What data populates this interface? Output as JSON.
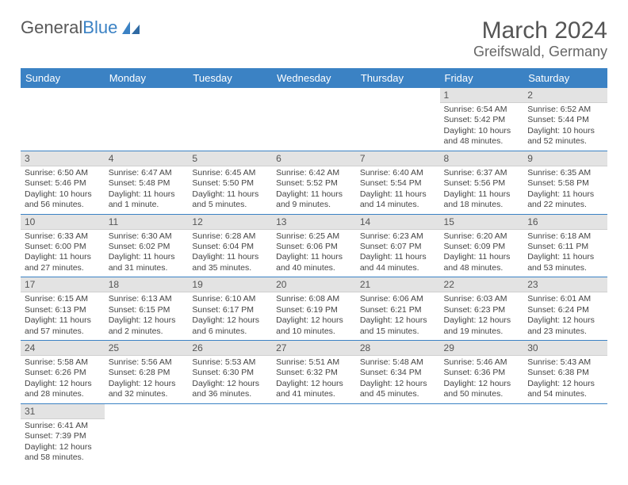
{
  "brand": {
    "part1": "General",
    "part2": "Blue"
  },
  "title": "March 2024",
  "location": "Greifswald, Germany",
  "weekdays": [
    "Sunday",
    "Monday",
    "Tuesday",
    "Wednesday",
    "Thursday",
    "Friday",
    "Saturday"
  ],
  "header_bg": "#3b82c4",
  "header_fg": "#ffffff",
  "daynum_bg": "#e3e3e3",
  "rule_color": "#3b82c4",
  "first_weekday_index": 5,
  "days": [
    {
      "n": 1,
      "sunrise": "6:54 AM",
      "sunset": "5:42 PM",
      "daylight": "10 hours and 48 minutes."
    },
    {
      "n": 2,
      "sunrise": "6:52 AM",
      "sunset": "5:44 PM",
      "daylight": "10 hours and 52 minutes."
    },
    {
      "n": 3,
      "sunrise": "6:50 AM",
      "sunset": "5:46 PM",
      "daylight": "10 hours and 56 minutes."
    },
    {
      "n": 4,
      "sunrise": "6:47 AM",
      "sunset": "5:48 PM",
      "daylight": "11 hours and 1 minute."
    },
    {
      "n": 5,
      "sunrise": "6:45 AM",
      "sunset": "5:50 PM",
      "daylight": "11 hours and 5 minutes."
    },
    {
      "n": 6,
      "sunrise": "6:42 AM",
      "sunset": "5:52 PM",
      "daylight": "11 hours and 9 minutes."
    },
    {
      "n": 7,
      "sunrise": "6:40 AM",
      "sunset": "5:54 PM",
      "daylight": "11 hours and 14 minutes."
    },
    {
      "n": 8,
      "sunrise": "6:37 AM",
      "sunset": "5:56 PM",
      "daylight": "11 hours and 18 minutes."
    },
    {
      "n": 9,
      "sunrise": "6:35 AM",
      "sunset": "5:58 PM",
      "daylight": "11 hours and 22 minutes."
    },
    {
      "n": 10,
      "sunrise": "6:33 AM",
      "sunset": "6:00 PM",
      "daylight": "11 hours and 27 minutes."
    },
    {
      "n": 11,
      "sunrise": "6:30 AM",
      "sunset": "6:02 PM",
      "daylight": "11 hours and 31 minutes."
    },
    {
      "n": 12,
      "sunrise": "6:28 AM",
      "sunset": "6:04 PM",
      "daylight": "11 hours and 35 minutes."
    },
    {
      "n": 13,
      "sunrise": "6:25 AM",
      "sunset": "6:06 PM",
      "daylight": "11 hours and 40 minutes."
    },
    {
      "n": 14,
      "sunrise": "6:23 AM",
      "sunset": "6:07 PM",
      "daylight": "11 hours and 44 minutes."
    },
    {
      "n": 15,
      "sunrise": "6:20 AM",
      "sunset": "6:09 PM",
      "daylight": "11 hours and 48 minutes."
    },
    {
      "n": 16,
      "sunrise": "6:18 AM",
      "sunset": "6:11 PM",
      "daylight": "11 hours and 53 minutes."
    },
    {
      "n": 17,
      "sunrise": "6:15 AM",
      "sunset": "6:13 PM",
      "daylight": "11 hours and 57 minutes."
    },
    {
      "n": 18,
      "sunrise": "6:13 AM",
      "sunset": "6:15 PM",
      "daylight": "12 hours and 2 minutes."
    },
    {
      "n": 19,
      "sunrise": "6:10 AM",
      "sunset": "6:17 PM",
      "daylight": "12 hours and 6 minutes."
    },
    {
      "n": 20,
      "sunrise": "6:08 AM",
      "sunset": "6:19 PM",
      "daylight": "12 hours and 10 minutes."
    },
    {
      "n": 21,
      "sunrise": "6:06 AM",
      "sunset": "6:21 PM",
      "daylight": "12 hours and 15 minutes."
    },
    {
      "n": 22,
      "sunrise": "6:03 AM",
      "sunset": "6:23 PM",
      "daylight": "12 hours and 19 minutes."
    },
    {
      "n": 23,
      "sunrise": "6:01 AM",
      "sunset": "6:24 PM",
      "daylight": "12 hours and 23 minutes."
    },
    {
      "n": 24,
      "sunrise": "5:58 AM",
      "sunset": "6:26 PM",
      "daylight": "12 hours and 28 minutes."
    },
    {
      "n": 25,
      "sunrise": "5:56 AM",
      "sunset": "6:28 PM",
      "daylight": "12 hours and 32 minutes."
    },
    {
      "n": 26,
      "sunrise": "5:53 AM",
      "sunset": "6:30 PM",
      "daylight": "12 hours and 36 minutes."
    },
    {
      "n": 27,
      "sunrise": "5:51 AM",
      "sunset": "6:32 PM",
      "daylight": "12 hours and 41 minutes."
    },
    {
      "n": 28,
      "sunrise": "5:48 AM",
      "sunset": "6:34 PM",
      "daylight": "12 hours and 45 minutes."
    },
    {
      "n": 29,
      "sunrise": "5:46 AM",
      "sunset": "6:36 PM",
      "daylight": "12 hours and 50 minutes."
    },
    {
      "n": 30,
      "sunrise": "5:43 AM",
      "sunset": "6:38 PM",
      "daylight": "12 hours and 54 minutes."
    },
    {
      "n": 31,
      "sunrise": "6:41 AM",
      "sunset": "7:39 PM",
      "daylight": "12 hours and 58 minutes."
    }
  ],
  "labels": {
    "sunrise": "Sunrise:",
    "sunset": "Sunset:",
    "daylight": "Daylight:"
  }
}
